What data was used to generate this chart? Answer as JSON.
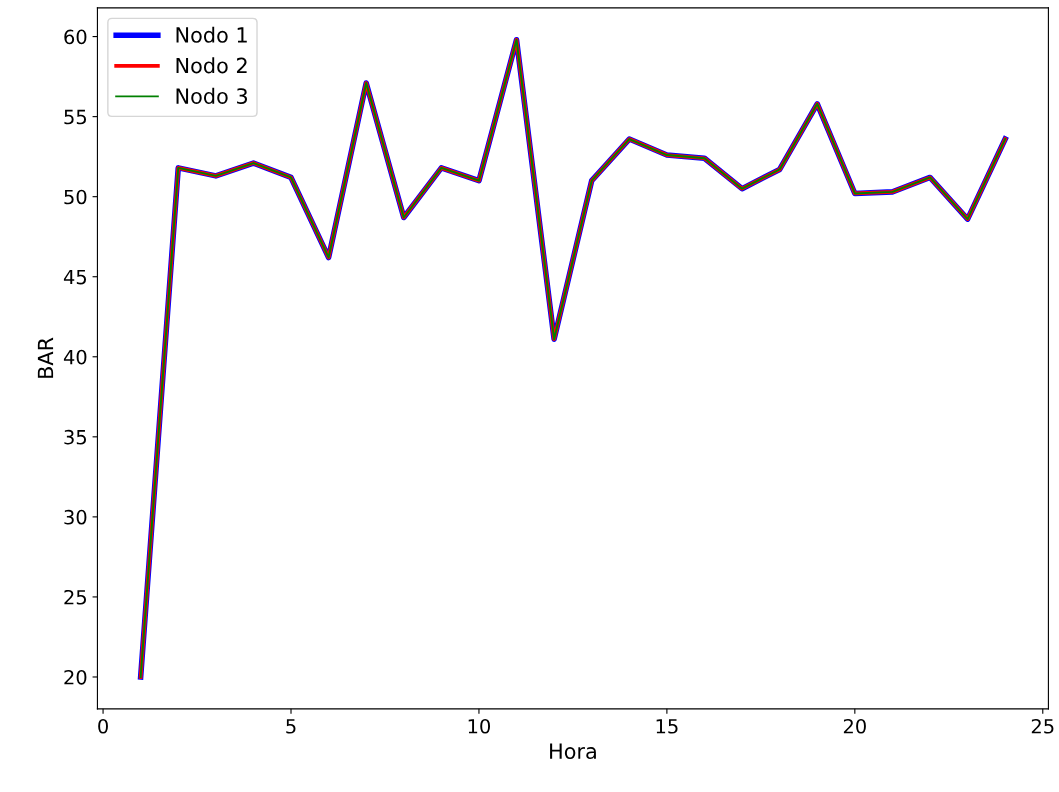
{
  "chart_data": {
    "type": "line",
    "xlabel": "Hora",
    "ylabel": "BAR",
    "x": [
      1,
      2,
      3,
      4,
      5,
      6,
      7,
      8,
      9,
      10,
      11,
      12,
      13,
      14,
      15,
      16,
      17,
      18,
      19,
      20,
      21,
      22,
      23,
      24
    ],
    "series": [
      {
        "name": "Nodo 1",
        "color": "#0000ff",
        "values": [
          20,
          51.8,
          51.3,
          52.1,
          51.2,
          46.2,
          57.1,
          48.7,
          51.8,
          51.0,
          59.8,
          41.1,
          51.0,
          53.6,
          52.6,
          52.4,
          50.5,
          51.7,
          55.8,
          50.2,
          50.3,
          51.2,
          48.6,
          53.6
        ]
      },
      {
        "name": "Nodo 2",
        "color": "#ff0000",
        "values": [
          20,
          51.8,
          51.3,
          52.1,
          51.2,
          46.2,
          57.1,
          48.7,
          51.8,
          51.0,
          59.8,
          41.1,
          51.0,
          53.6,
          52.6,
          52.4,
          50.5,
          51.7,
          55.8,
          50.2,
          50.3,
          51.2,
          48.6,
          53.6
        ]
      },
      {
        "name": "Nodo 3",
        "color": "#008000",
        "values": [
          20,
          51.8,
          51.3,
          52.1,
          51.2,
          46.2,
          57.1,
          48.7,
          51.8,
          51.0,
          59.8,
          41.1,
          51.0,
          53.6,
          52.6,
          52.4,
          50.5,
          51.7,
          55.8,
          50.2,
          50.3,
          51.2,
          48.6,
          53.6
        ]
      }
    ],
    "xlim": [
      -0.15,
      25.15
    ],
    "xticks": [
      0,
      5,
      10,
      15,
      20,
      25
    ],
    "ylim": [
      18.01,
      61.79
    ],
    "yticks": [
      20,
      25,
      30,
      35,
      40,
      45,
      50,
      55,
      60
    ],
    "grid": false,
    "legend": "top left",
    "marker": "none",
    "line_style": "solid"
  }
}
